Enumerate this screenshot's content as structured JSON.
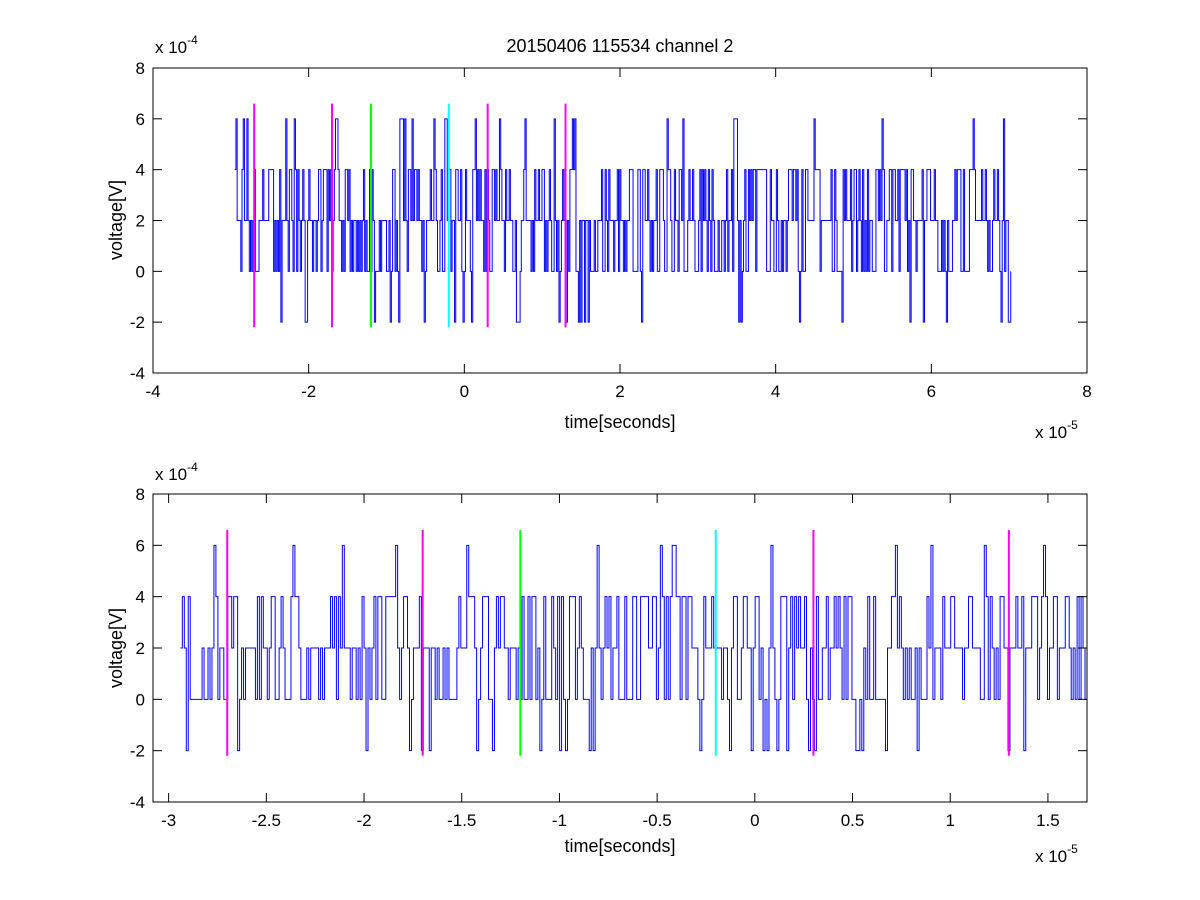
{
  "title": "20150406 115534 channel 2",
  "colors": {
    "trace": "#0000ff",
    "marker_magenta": "#ff00ff",
    "marker_green": "#00ff00",
    "marker_cyan": "#00ffff",
    "axes": "#000000",
    "background": "#ffffff"
  },
  "chart_data": [
    {
      "type": "line",
      "title": "20150406 115534 channel 2",
      "xlabel": "time[seconds]",
      "ylabel": "voltage[V]",
      "x_exponent_base": "x 10",
      "x_exponent": "-5",
      "y_exponent_base": "x 10",
      "y_exponent": "-4",
      "xlim": [
        -4,
        8
      ],
      "ylim": [
        -4,
        8
      ],
      "xticks": [
        -4,
        -2,
        0,
        2,
        4,
        6,
        8
      ],
      "yticks": [
        -4,
        -2,
        0,
        2,
        4,
        6,
        8
      ],
      "xtick_labels": [
        "-4",
        "-2",
        "0",
        "2",
        "4",
        "6",
        "8"
      ],
      "ytick_labels": [
        "-4",
        "-2",
        "0",
        "2",
        "4",
        "6",
        "8"
      ],
      "grid": false,
      "series": [
        {
          "color": "#0000ff",
          "x_range": [
            -2.95,
            7.02
          ],
          "levels": [
            -2,
            0,
            2,
            4,
            6
          ],
          "baseline": 2,
          "sample_count": 640
        }
      ],
      "markers": [
        {
          "x": -2.7,
          "color": "#ff00ff",
          "y_range": [
            -2.2,
            6.6
          ]
        },
        {
          "x": -1.7,
          "color": "#ff00ff",
          "y_range": [
            -2.2,
            6.6
          ]
        },
        {
          "x": -1.2,
          "color": "#00ff00",
          "y_range": [
            -2.2,
            6.6
          ]
        },
        {
          "x": -0.2,
          "color": "#00ffff",
          "y_range": [
            -2.2,
            6.6
          ]
        },
        {
          "x": 0.3,
          "color": "#ff00ff",
          "y_range": [
            -2.2,
            6.6
          ]
        },
        {
          "x": 1.3,
          "color": "#ff00ff",
          "y_range": [
            -2.2,
            6.6
          ]
        }
      ]
    },
    {
      "type": "line",
      "title": "",
      "xlabel": "time[seconds]",
      "ylabel": "voltage[V]",
      "x_exponent_base": "x 10",
      "x_exponent": "-5",
      "y_exponent_base": "x 10",
      "y_exponent": "-4",
      "xlim": [
        -3.08,
        1.7
      ],
      "ylim": [
        -4,
        8
      ],
      "xticks": [
        -3,
        -2.5,
        -2,
        -1.5,
        -1,
        -0.5,
        0,
        0.5,
        1,
        1.5
      ],
      "yticks": [
        -4,
        -2,
        0,
        2,
        4,
        6,
        8
      ],
      "xtick_labels": [
        "-3",
        "-2.5",
        "-2",
        "-1.5",
        "-1",
        "-0.5",
        "0",
        "0.5",
        "1",
        "1.5"
      ],
      "ytick_labels": [
        "-4",
        "-2",
        "0",
        "2",
        "4",
        "6",
        "8"
      ],
      "grid": false,
      "series": [
        {
          "color": "#0000ff",
          "x_range": [
            -2.94,
            1.7
          ],
          "levels": [
            -2,
            0,
            2,
            4,
            6
          ],
          "baseline": 2,
          "sample_count": 460
        }
      ],
      "markers": [
        {
          "x": -2.7,
          "color": "#ff00ff",
          "y_range": [
            -2.2,
            6.6
          ]
        },
        {
          "x": -1.7,
          "color": "#ff00ff",
          "y_range": [
            -2.2,
            6.6
          ]
        },
        {
          "x": -1.2,
          "color": "#00ff00",
          "y_range": [
            -2.2,
            6.6
          ]
        },
        {
          "x": -0.2,
          "color": "#00ffff",
          "y_range": [
            -2.2,
            6.6
          ]
        },
        {
          "x": 0.3,
          "color": "#ff00ff",
          "y_range": [
            -2.2,
            6.6
          ]
        },
        {
          "x": 1.3,
          "color": "#ff00ff",
          "y_range": [
            -2.2,
            6.6
          ]
        }
      ]
    }
  ]
}
